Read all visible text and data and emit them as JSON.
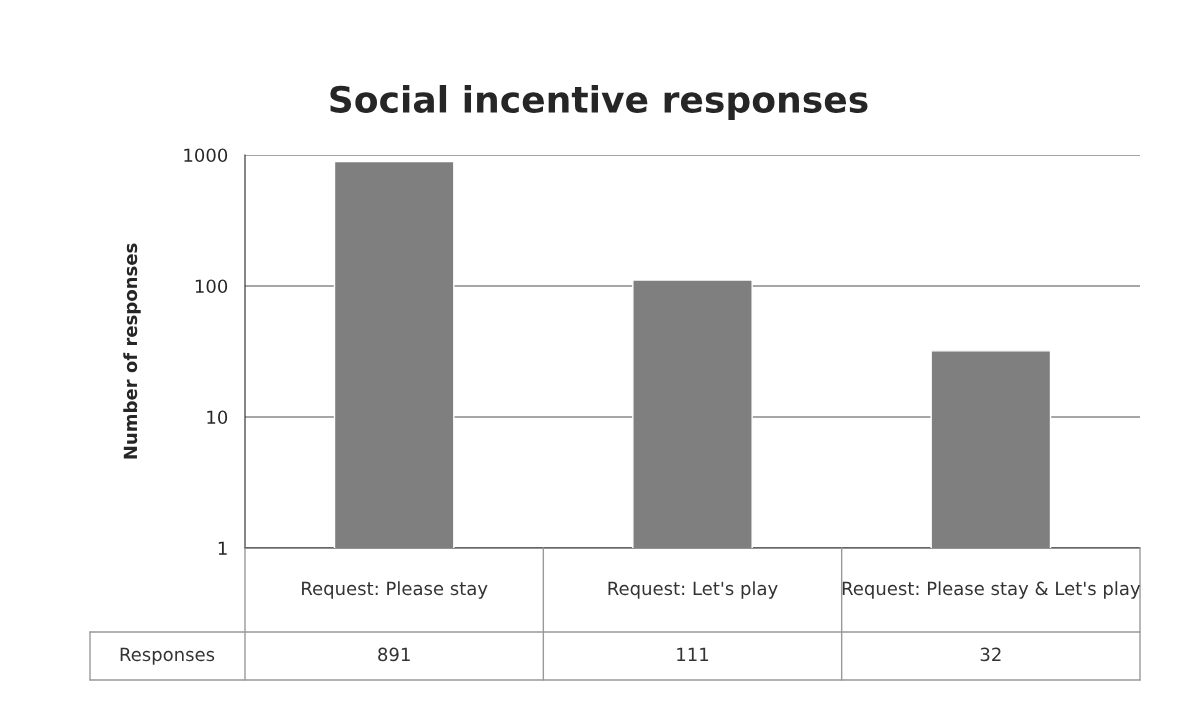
{
  "chart_data": {
    "type": "bar",
    "title": "Social incentive responses",
    "ylabel": "Number of responses",
    "categories": [
      "Request: Please stay",
      "Request: Let's play",
      "Request: Please stay & Let's play"
    ],
    "series": [
      {
        "name": "Responses",
        "color": "#7f7f7f",
        "values": [
          891,
          111,
          32
        ]
      }
    ],
    "log": "y",
    "ylim": [
      1,
      1000
    ],
    "yticks": [
      1,
      10,
      100,
      1000
    ],
    "grid": "y",
    "data_labels": true,
    "legend": false
  }
}
